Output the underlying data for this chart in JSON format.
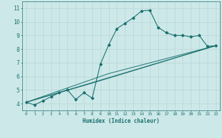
{
  "xlabel": "Humidex (Indice chaleur)",
  "bg_color": "#cde8e8",
  "grid_color": "#b8d4d4",
  "line_color": "#1a7070",
  "xlim": [
    -0.5,
    23.5
  ],
  "ylim": [
    3.5,
    11.5
  ],
  "yticks": [
    4,
    5,
    6,
    7,
    8,
    9,
    10,
    11
  ],
  "xticks": [
    0,
    1,
    2,
    3,
    4,
    5,
    6,
    7,
    8,
    9,
    10,
    11,
    12,
    13,
    14,
    15,
    16,
    17,
    18,
    19,
    20,
    21,
    22,
    23
  ],
  "main_series_x": [
    0,
    1,
    2,
    3,
    4,
    5,
    6,
    7,
    8,
    9,
    10,
    11,
    12,
    13,
    14,
    15,
    16,
    17,
    18,
    19,
    20,
    21,
    22,
    23
  ],
  "main_series_y": [
    4.1,
    3.9,
    4.2,
    4.5,
    4.8,
    5.0,
    4.3,
    4.8,
    4.4,
    6.9,
    8.3,
    9.5,
    9.9,
    10.3,
    10.8,
    10.85,
    9.6,
    9.2,
    9.0,
    9.0,
    8.9,
    9.0,
    8.2,
    8.25
  ],
  "ref_lines": [
    {
      "x": [
        0,
        23
      ],
      "y": [
        4.1,
        8.25
      ]
    },
    {
      "x": [
        0,
        23
      ],
      "y": [
        4.1,
        8.25
      ]
    },
    {
      "x": [
        0,
        23
      ],
      "y": [
        4.1,
        8.25
      ]
    }
  ],
  "ref_anchors": [
    {
      "x": [
        0,
        5,
        23
      ],
      "y": [
        4.1,
        5.0,
        8.25
      ]
    },
    {
      "x": [
        0,
        8,
        23
      ],
      "y": [
        4.1,
        5.5,
        8.25
      ]
    },
    {
      "x": [
        0,
        10,
        23
      ],
      "y": [
        4.1,
        6.2,
        8.25
      ]
    }
  ]
}
